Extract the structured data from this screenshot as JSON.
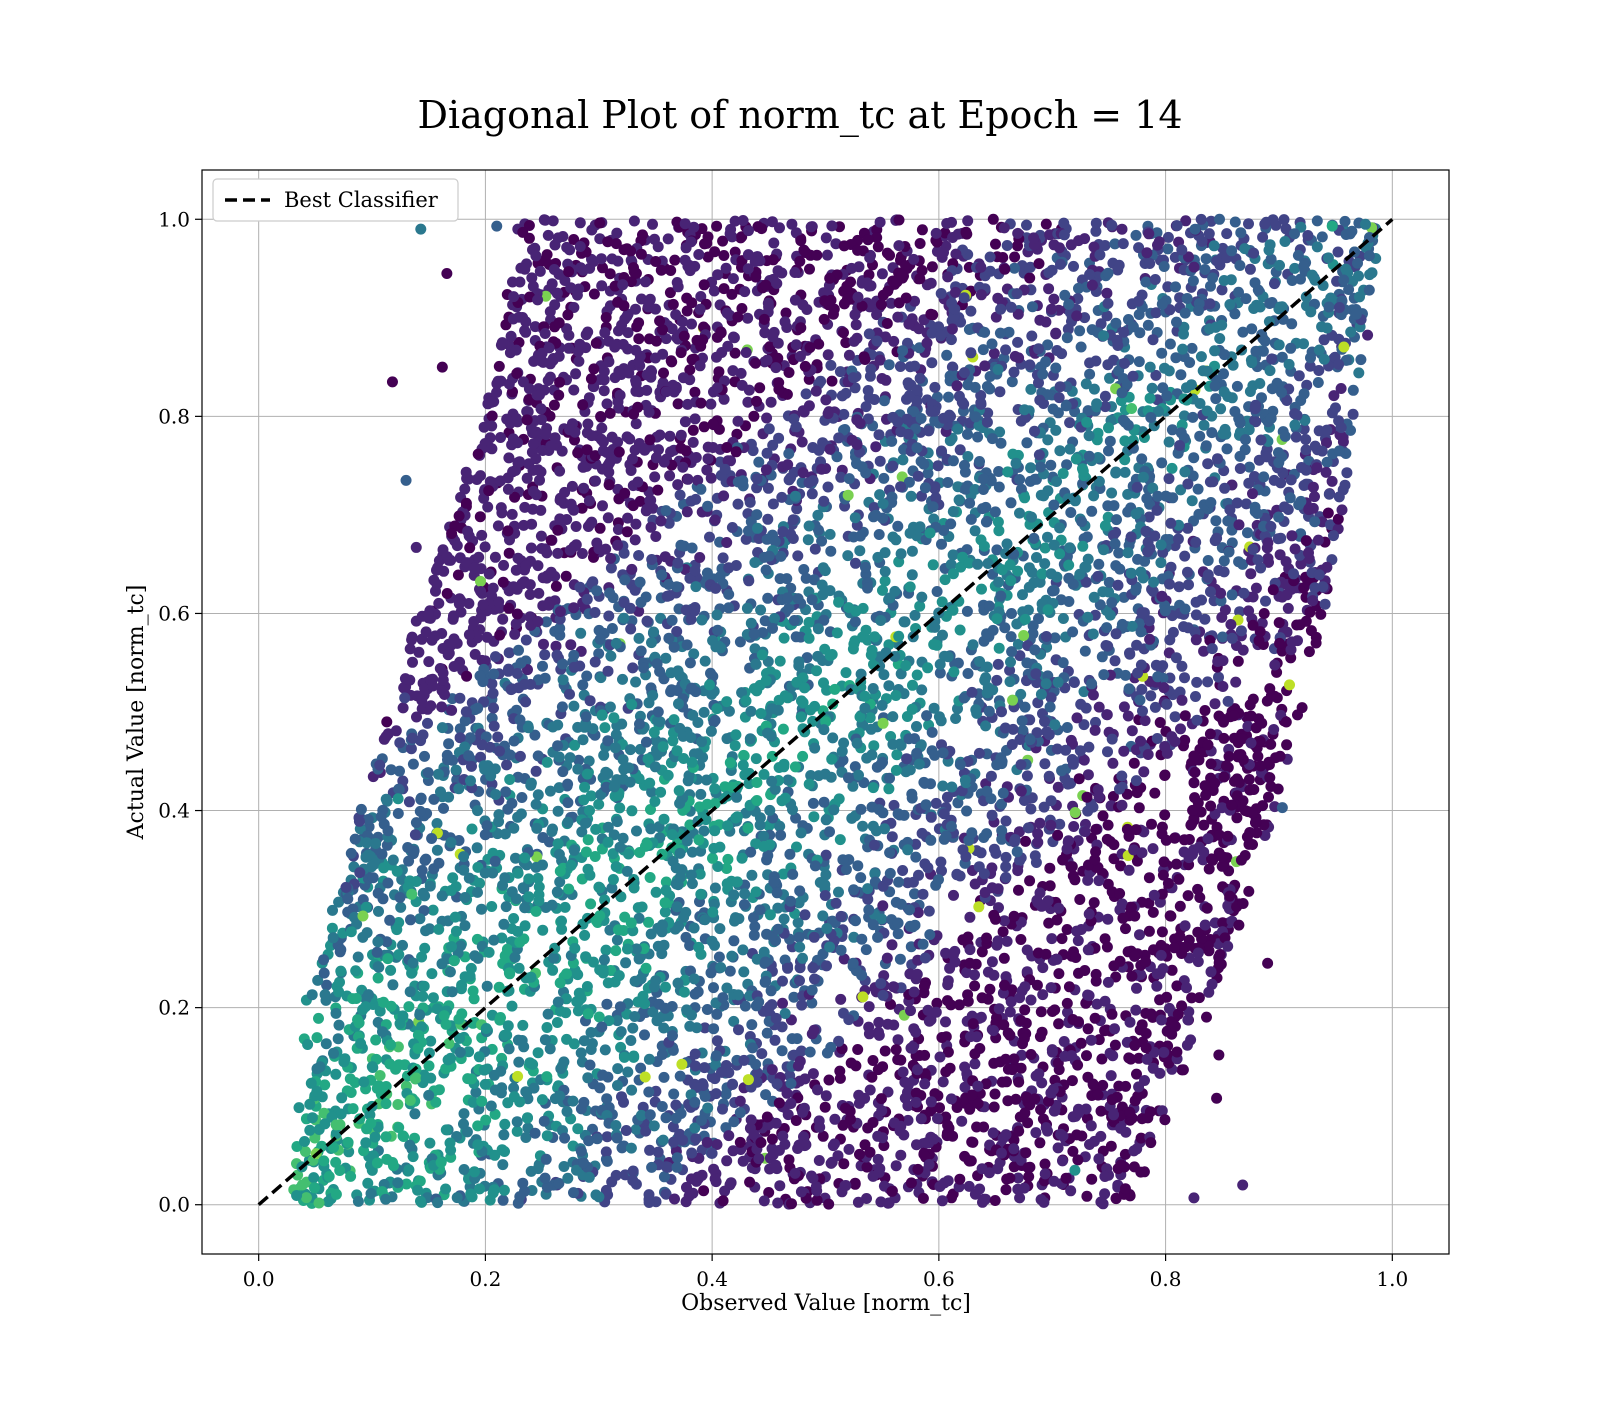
{
  "chart_data": {
    "type": "scatter",
    "title": "Diagonal Plot of norm_tc at Epoch = 14",
    "xlabel": "Observed Value [norm_tc]",
    "ylabel": "Actual Value [norm_tc]",
    "xlim": [
      -0.05,
      1.05
    ],
    "ylim": [
      -0.05,
      1.05
    ],
    "xticks": [
      0.0,
      0.2,
      0.4,
      0.6,
      0.8,
      1.0
    ],
    "yticks": [
      0.0,
      0.2,
      0.4,
      0.6,
      0.8,
      1.0
    ],
    "xtick_labels": [
      "0.0",
      "0.2",
      "0.4",
      "0.6",
      "0.8",
      "1.0"
    ],
    "ytick_labels": [
      "0.0",
      "0.2",
      "0.4",
      "0.6",
      "0.8",
      "1.0"
    ],
    "grid": true,
    "colormap": "viridis",
    "point_colors": [
      "#440154",
      "#482475",
      "#414487",
      "#355f8d",
      "#2a788e",
      "#21918c",
      "#22a884",
      "#44bf70",
      "#7ad151",
      "#bddf26"
    ],
    "reference_line": {
      "label": "Best Classifier",
      "x": [
        0.0,
        1.0
      ],
      "y": [
        0.0,
        1.0
      ],
      "style": "dashed",
      "color": "#000000"
    },
    "legend": {
      "placement": "upper-left",
      "entries": [
        "Best Classifier"
      ]
    },
    "density_band": {
      "description_points": [
        {
          "y": 0.0,
          "x_min": 0.07,
          "x_max": 0.73
        },
        {
          "y": 0.2,
          "x_min": 0.08,
          "x_max": 0.8
        },
        {
          "y": 0.4,
          "x_min": 0.13,
          "x_max": 0.86
        },
        {
          "y": 0.6,
          "x_min": 0.18,
          "x_max": 0.9
        },
        {
          "y": 0.8,
          "x_min": 0.24,
          "x_max": 0.93
        },
        {
          "y": 1.0,
          "x_min": 0.27,
          "x_max": 0.95
        }
      ]
    },
    "sample_points": [
      {
        "x": 0.143,
        "y": 0.99,
        "c": 4
      },
      {
        "x": 0.118,
        "y": 0.835,
        "c": 0
      },
      {
        "x": 0.13,
        "y": 0.735,
        "c": 3
      },
      {
        "x": 0.139,
        "y": 0.667,
        "c": 1
      },
      {
        "x": 0.113,
        "y": 0.49,
        "c": 0
      },
      {
        "x": 0.092,
        "y": 0.293,
        "c": 8
      },
      {
        "x": 0.077,
        "y": 0.322,
        "c": 2
      },
      {
        "x": 0.432,
        "y": 0.127,
        "c": 9
      },
      {
        "x": 0.52,
        "y": 0.72,
        "c": 8
      },
      {
        "x": 0.665,
        "y": 0.512,
        "c": 8
      },
      {
        "x": 0.89,
        "y": 0.245,
        "c": 0
      },
      {
        "x": 0.903,
        "y": 0.403,
        "c": 3
      },
      {
        "x": 0.868,
        "y": 0.02,
        "c": 1
      },
      {
        "x": 0.825,
        "y": 0.007,
        "c": 1
      },
      {
        "x": 0.94,
        "y": 0.858,
        "c": 4
      },
      {
        "x": 0.947,
        "y": 0.993,
        "c": 6
      },
      {
        "x": 0.21,
        "y": 0.993,
        "c": 3
      },
      {
        "x": 0.166,
        "y": 0.945,
        "c": 0
      },
      {
        "x": 0.162,
        "y": 0.85,
        "c": 0
      },
      {
        "x": 0.887,
        "y": 0.6,
        "c": 0
      },
      {
        "x": 0.895,
        "y": 0.624,
        "c": 0
      },
      {
        "x": 0.845,
        "y": 0.108,
        "c": 0
      },
      {
        "x": 0.847,
        "y": 0.152,
        "c": 0
      },
      {
        "x": 0.81,
        "y": 0.155,
        "c": 0
      },
      {
        "x": 0.77,
        "y": 0.808,
        "c": 7
      },
      {
        "x": 0.72,
        "y": 0.035,
        "c": 5
      },
      {
        "x": 0.135,
        "y": 0.315,
        "c": 7
      },
      {
        "x": 0.123,
        "y": 0.412,
        "c": 5
      }
    ]
  }
}
